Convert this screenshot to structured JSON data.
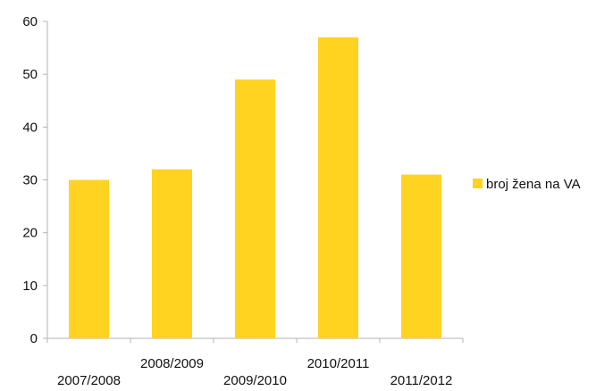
{
  "chart_data": {
    "type": "bar",
    "categories": [
      "2007/2008",
      "2008/2009",
      "2009/2010",
      "2010/2011",
      "2011/2012"
    ],
    "series": [
      {
        "name": "broj žena na VA",
        "values": [
          30,
          32,
          49,
          57,
          31
        ]
      }
    ],
    "ylim": [
      0,
      60
    ],
    "yticks": [
      0,
      10,
      20,
      30,
      40,
      50,
      60
    ],
    "grid": false,
    "legend_position": "right",
    "bar_color": "#FFD320",
    "axis_color": "#b3b3b3"
  }
}
